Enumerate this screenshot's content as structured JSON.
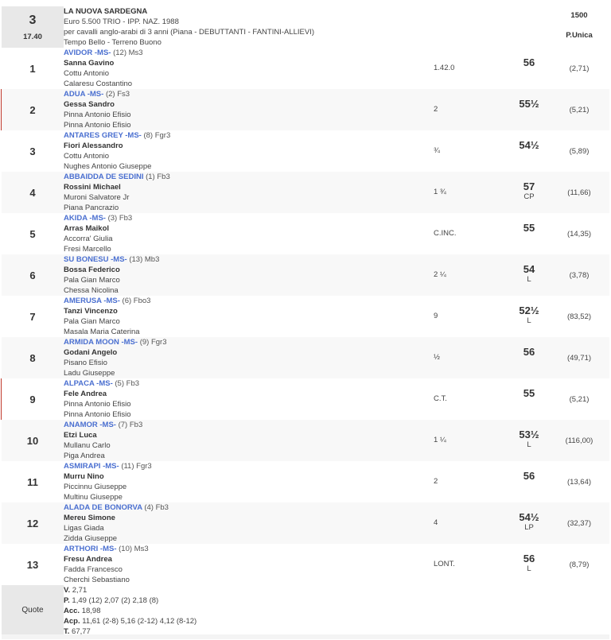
{
  "race": {
    "number": "3",
    "time": "17.40",
    "title": "LA NUOVA SARDEGNA",
    "prize": "Euro 5.500 TRIO - IPP. NAZ. 1988",
    "conditions": "per cavalli anglo-arabi di 3 anni (Piana -  DEBUTTANTI  - FANTINI-ALLIEVI)",
    "weather": "Tempo Bello - Terreno Buono",
    "distance": "1500",
    "start": "P.Unica"
  },
  "runners": [
    {
      "pos": "1",
      "horse": "AVIDOR -MS-",
      "extra": "(12) Ms3",
      "jockey": "Sanna Gavino",
      "trainer": "Cottu Antonio",
      "owner": "Calaresu Costantino",
      "dist": "1.42.0",
      "weight": "56",
      "note": "",
      "odds": "(2,71)",
      "mark": false
    },
    {
      "pos": "2",
      "horse": "ADUA -MS-",
      "extra": "(2) Fs3",
      "jockey": "Gessa Sandro",
      "trainer": "Pinna Antonio Efisio",
      "owner": "Pinna Antonio Efisio",
      "dist": "2",
      "weight": "55½",
      "note": "",
      "odds": "(5,21)",
      "mark": true
    },
    {
      "pos": "3",
      "horse": "ANTARES GREY -MS-",
      "extra": "(8) Fgr3",
      "jockey": "Fiori Alessandro",
      "trainer": "Cottu Antonio",
      "owner": "Nughes Antonio Giuseppe",
      "dist": "¾",
      "weight": "54½",
      "note": "",
      "odds": "(5,89)",
      "mark": false
    },
    {
      "pos": "4",
      "horse": "ABBAIDDA DE SEDINI",
      "extra": "(1) Fb3",
      "jockey": "Rossini Michael",
      "trainer": "Muroni Salvatore Jr",
      "owner": "Piana Pancrazio",
      "dist": "1 ¾",
      "weight": "57",
      "note": "CP",
      "odds": "(11,66)",
      "mark": false
    },
    {
      "pos": "5",
      "horse": "AKIDA -MS-",
      "extra": "(3) Fb3",
      "jockey": "Arras Maikol",
      "trainer": "Accorra' Giulia",
      "owner": "Fresi Marcello",
      "dist": "C.INC.",
      "weight": "55",
      "note": "",
      "odds": "(14,35)",
      "mark": false
    },
    {
      "pos": "6",
      "horse": "SU BONESU -MS-",
      "extra": "(13) Mb3",
      "jockey": "Bossa Federico",
      "trainer": "Pala Gian Marco",
      "owner": "Chessa Nicolina",
      "dist": "2 ¼",
      "weight": "54",
      "note": "L",
      "odds": "(3,78)",
      "mark": false
    },
    {
      "pos": "7",
      "horse": "AMERUSA -MS-",
      "extra": "(6) Fbo3",
      "jockey": "Tanzi Vincenzo",
      "trainer": "Pala Gian Marco",
      "owner": "Masala Maria Caterina",
      "dist": "9",
      "weight": "52½",
      "note": "L",
      "odds": "(83,52)",
      "mark": false
    },
    {
      "pos": "8",
      "horse": "ARMIDA MOON -MS-",
      "extra": "(9) Fgr3",
      "jockey": "Godani Angelo",
      "trainer": "Pisano Efisio",
      "owner": "Ladu Giuseppe",
      "dist": "½",
      "weight": "56",
      "note": "",
      "odds": "(49,71)",
      "mark": false
    },
    {
      "pos": "9",
      "horse": "ALPACA -MS-",
      "extra": "(5) Fb3",
      "jockey": "Fele Andrea",
      "trainer": "Pinna Antonio Efisio",
      "owner": "Pinna Antonio Efisio",
      "dist": "C.T.",
      "weight": "55",
      "note": "",
      "odds": "(5,21)",
      "mark": true
    },
    {
      "pos": "10",
      "horse": "ANAMOR -MS-",
      "extra": "(7) Fb3",
      "jockey": "Etzi Luca",
      "trainer": "Mullanu Carlo",
      "owner": "Piga Andrea",
      "dist": "1 ¼",
      "weight": "53½",
      "note": "L",
      "odds": "(116,00)",
      "mark": false
    },
    {
      "pos": "11",
      "horse": "ASMIRAPI -MS-",
      "extra": "(11) Fgr3",
      "jockey": "Murru Nino",
      "trainer": "Piccinnu Giuseppe",
      "owner": "Multinu Giuseppe",
      "dist": "2",
      "weight": "56",
      "note": "",
      "odds": "(13,64)",
      "mark": false
    },
    {
      "pos": "12",
      "horse": "ALADA DE BONORVA",
      "extra": "(4) Fb3",
      "jockey": "Mereu Simone",
      "trainer": "Ligas Giada",
      "owner": "Zidda Giuseppe",
      "dist": "4",
      "weight": "54½",
      "note": "LP",
      "odds": "(32,37)",
      "mark": false
    },
    {
      "pos": "13",
      "horse": "ARTHORI -MS-",
      "extra": "(10) Ms3",
      "jockey": "Fresu Andrea",
      "trainer": "Fadda Francesco",
      "owner": "Cherchi Sebastiano",
      "dist": "LONT.",
      "weight": "56",
      "note": "L",
      "odds": "(8,79)",
      "mark": false
    }
  ],
  "quote": {
    "label": "Quote",
    "lines": [
      {
        "k": "V.",
        "v": "2,71"
      },
      {
        "k": "P.",
        "v": "1,49 (12)  2,07 (2)  2,18 (8)"
      },
      {
        "k": "Acc.",
        "v": "18,98"
      },
      {
        "k": "Acp.",
        "v": "11,61 (2-8)  5,16 (2-12)  4,12 (8-12)"
      },
      {
        "k": "T.",
        "v": "67,77"
      }
    ]
  }
}
